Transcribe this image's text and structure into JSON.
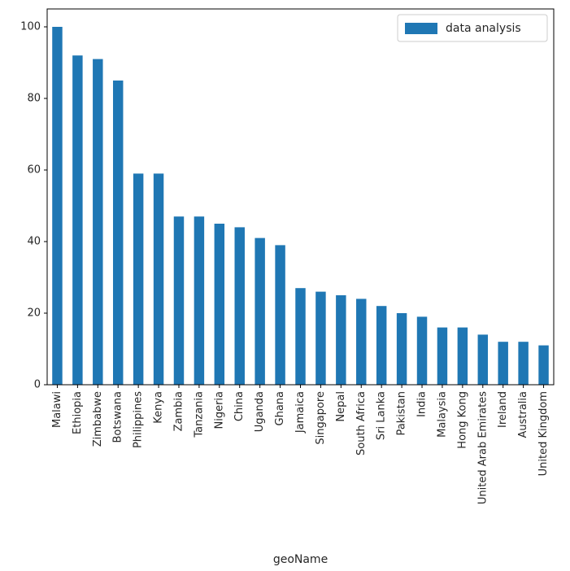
{
  "chart_data": {
    "type": "bar",
    "categories": [
      "Malawi",
      "Ethiopia",
      "Zimbabwe",
      "Botswana",
      "Philippines",
      "Kenya",
      "Zambia",
      "Tanzania",
      "Nigeria",
      "China",
      "Uganda",
      "Ghana",
      "Jamaica",
      "Singapore",
      "Nepal",
      "South Africa",
      "Sri Lanka",
      "Pakistan",
      "India",
      "Malaysia",
      "Hong Kong",
      "United Arab Emirates",
      "Ireland",
      "Australia",
      "United Kingdom"
    ],
    "series": [
      {
        "name": "data analysis",
        "color": "#1f77b4",
        "values": [
          100,
          92,
          91,
          85,
          59,
          59,
          47,
          47,
          45,
          44,
          41,
          39,
          27,
          26,
          25,
          24,
          22,
          20,
          19,
          16,
          16,
          14,
          12,
          12,
          11
        ]
      }
    ],
    "title": "",
    "xlabel": "geoName",
    "ylabel": "",
    "ylim": [
      0,
      105
    ],
    "yticks": [
      0,
      20,
      40,
      60,
      80,
      100
    ],
    "grid": false,
    "legend_position": "top-right"
  }
}
